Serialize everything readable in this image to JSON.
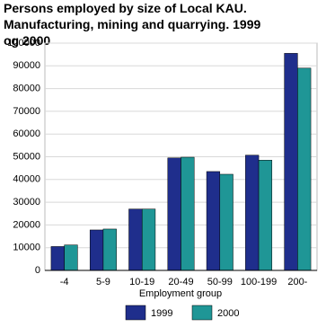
{
  "chart_data": {
    "type": "bar",
    "title": "Persons employed by size of Local KAU. Manufacturing, mining and quarrying. 1999 og 2000",
    "x_label": "Employment group",
    "categories": [
      "-4",
      "5-9",
      "10-19",
      "20-49",
      "50-99",
      "100-199",
      "200-"
    ],
    "series": [
      {
        "name": "1999",
        "color": "#1f2e8c",
        "values": [
          10500,
          17800,
          27000,
          49500,
          43500,
          50700,
          95500
        ]
      },
      {
        "name": "2000",
        "color": "#1f9696",
        "values": [
          11200,
          18200,
          27000,
          49800,
          42300,
          48500,
          89000
        ]
      }
    ],
    "ylim": [
      0,
      100000
    ],
    "yticks": [
      0,
      10000,
      20000,
      30000,
      40000,
      50000,
      60000,
      70000,
      80000,
      90000,
      100000
    ],
    "grid": true
  }
}
